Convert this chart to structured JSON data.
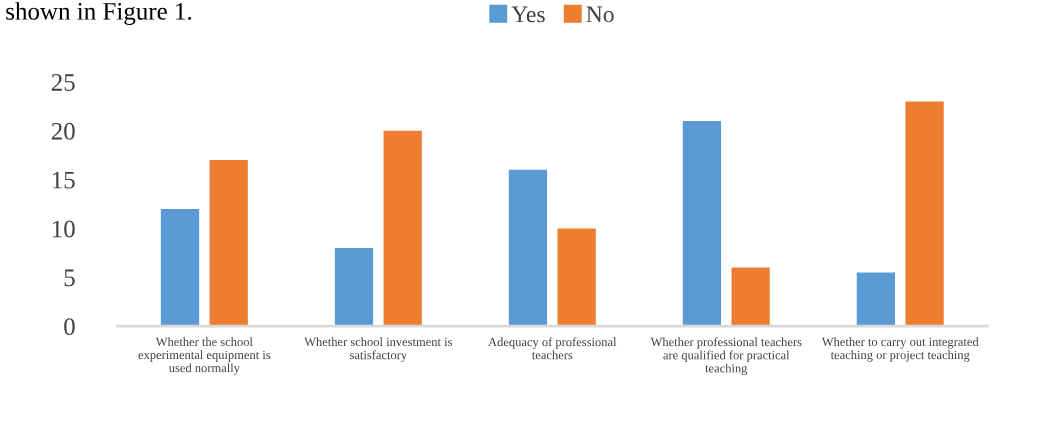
{
  "chart_data": {
    "type": "bar",
    "annotations": [
      "shown in Figure 1."
    ],
    "categories": [
      "Whether the school\nexperimental equipment is\nused normally",
      "Whether school investment is\nsatisfactory",
      "Adequacy of professional\nteachers",
      "Whether professional teachers\nare qualified for practical\nteaching",
      "Whether to carry out integrated\nteaching or project teaching"
    ],
    "series": [
      {
        "name": "Yes",
        "color": "#5b9bd5",
        "values": [
          12,
          8,
          16,
          21,
          5.5
        ]
      },
      {
        "name": "No",
        "color": "#ed7d31",
        "values": [
          17,
          20,
          10,
          6,
          23
        ]
      }
    ],
    "ylim": [
      0,
      25
    ],
    "yticks": [
      0,
      5,
      10,
      15,
      20,
      25
    ],
    "grid": false,
    "legend": "top"
  }
}
